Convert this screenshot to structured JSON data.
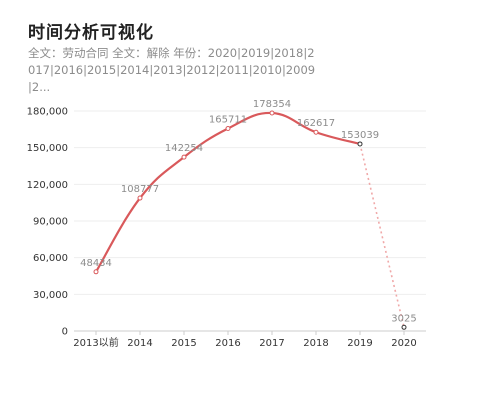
{
  "header": {
    "title": "时间分析可视化",
    "subtitle": "全文：劳动合同   全文：解除   年份：2020|2019|2018|2017|2016|2015|2014|2013|2012|2011|2010|2009|2..."
  },
  "colors": {
    "line": "#d9595b",
    "dashed": "#f0a8a8",
    "grid": "#eeeeee",
    "axis": "#cccccc",
    "last_marker": "#333333"
  },
  "chart_data": {
    "type": "line",
    "title": "",
    "xlabel": "",
    "ylabel": "",
    "categories": [
      "2013以前",
      "2014",
      "2015",
      "2016",
      "2017",
      "2018",
      "2019",
      "2020"
    ],
    "values": [
      48434,
      108777,
      142254,
      165711,
      178354,
      162617,
      153039,
      3025
    ],
    "value_labels": [
      "48434",
      "108777",
      "142254",
      "165711",
      "178354",
      "162617",
      "153039",
      "3025"
    ],
    "y_ticks": [
      0,
      30000,
      60000,
      90000,
      120000,
      150000,
      180000
    ],
    "y_tick_labels": [
      "0",
      "30,000",
      "60,000",
      "90,000",
      "120,000",
      "150,000",
      "180,000"
    ],
    "ylim": [
      0,
      180000
    ],
    "grid": true,
    "solid_until_index": 6,
    "legend": "none"
  }
}
